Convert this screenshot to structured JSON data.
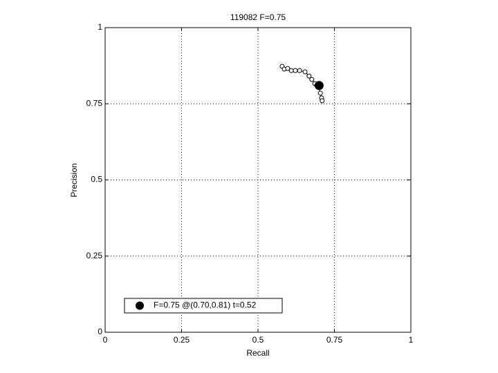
{
  "chart_data": {
    "type": "line",
    "title": "119082 F=0.75",
    "xlabel": "Recall",
    "ylabel": "Precision",
    "xlim": [
      0,
      1
    ],
    "ylim": [
      0,
      1
    ],
    "xticks": [
      0,
      0.25,
      0.5,
      0.75,
      1
    ],
    "yticks": [
      0,
      0.25,
      0.5,
      0.75,
      1
    ],
    "grid": true,
    "legend": "lower left",
    "series": [
      {
        "color": "#000000",
        "marker": "open-circle",
        "x": [
          0.579,
          0.586,
          0.597,
          0.609,
          0.622,
          0.636,
          0.654,
          0.667,
          0.676,
          0.686,
          0.692,
          0.699,
          0.704,
          0.708,
          0.71
        ],
        "values": [
          0.873,
          0.864,
          0.866,
          0.859,
          0.859,
          0.859,
          0.855,
          0.841,
          0.83,
          0.816,
          0.81,
          0.803,
          0.785,
          0.769,
          0.76
        ]
      },
      {
        "name": "F=0.75 @(0.70,0.81) t=0.52",
        "color": "#000000",
        "marker": "filled-circle",
        "x": [
          0.7
        ],
        "values": [
          0.81
        ]
      }
    ]
  }
}
